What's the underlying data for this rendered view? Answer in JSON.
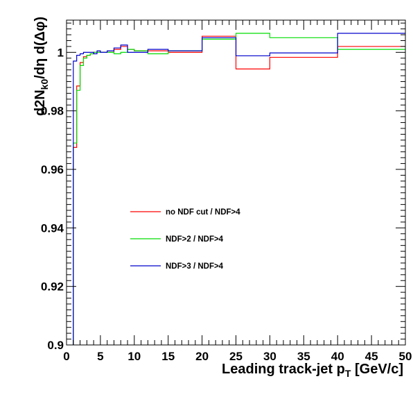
{
  "chart_data": {
    "type": "line",
    "title": "",
    "xlabel": "Leading track-jet p_T [GeV/c]",
    "ylabel": "d2N_k0/dη d(Δφ)",
    "xlim": [
      0,
      50
    ],
    "ylim": [
      0.9,
      1.011
    ],
    "x_ticks": [
      0,
      5,
      10,
      15,
      20,
      25,
      30,
      35,
      40,
      45,
      50
    ],
    "y_ticks": [
      0.9,
      0.92,
      0.94,
      0.96,
      0.98,
      1
    ],
    "x_tick_labels": [
      "0",
      "5",
      "10",
      "15",
      "20",
      "25",
      "30",
      "35",
      "40",
      "45",
      "50"
    ],
    "y_tick_labels": [
      "0.9",
      "0.92",
      "0.94",
      "0.96",
      "0.98",
      "1"
    ],
    "grid": false,
    "legend_placement": "center-left",
    "bin_edges": [
      1,
      1.5,
      2,
      2.5,
      3,
      3.5,
      4,
      4.5,
      5,
      6,
      7,
      8,
      9,
      10,
      12,
      15,
      20,
      25,
      30,
      40,
      50
    ],
    "series": [
      {
        "name": "no NDF cut / NDF>4",
        "color": "#ff0000",
        "values": [
          0.9675,
          0.9885,
          0.9965,
          0.9985,
          0.999,
          0.9995,
          1.0,
          1.0,
          1.0,
          1.0,
          1.001,
          1.002,
          1.001,
          1.0005,
          1.0005,
          1.0,
          1.0055,
          0.9943,
          0.9983,
          1.002
        ]
      },
      {
        "name": "NDF>2 / NDF>4",
        "color": "#00dd00",
        "values": [
          0.969,
          0.987,
          0.9955,
          0.998,
          0.999,
          0.9995,
          1.0,
          1.0,
          1.0,
          1.0,
          0.9995,
          1.0,
          1.001,
          1.0005,
          0.9995,
          1.0005,
          1.0045,
          1.0065,
          1.005,
          1.001
        ]
      },
      {
        "name": "NDF>3 / NDF>4",
        "color": "#0000cc",
        "values": [
          0.997,
          0.999,
          0.9995,
          1.0,
          1.0,
          1.0,
          0.9995,
          1.0005,
          1.0,
          1.0005,
          1.0015,
          1.0025,
          1.0,
          1.0,
          1.001,
          1.0005,
          1.005,
          0.9988,
          0.9998,
          1.0065
        ]
      }
    ]
  }
}
